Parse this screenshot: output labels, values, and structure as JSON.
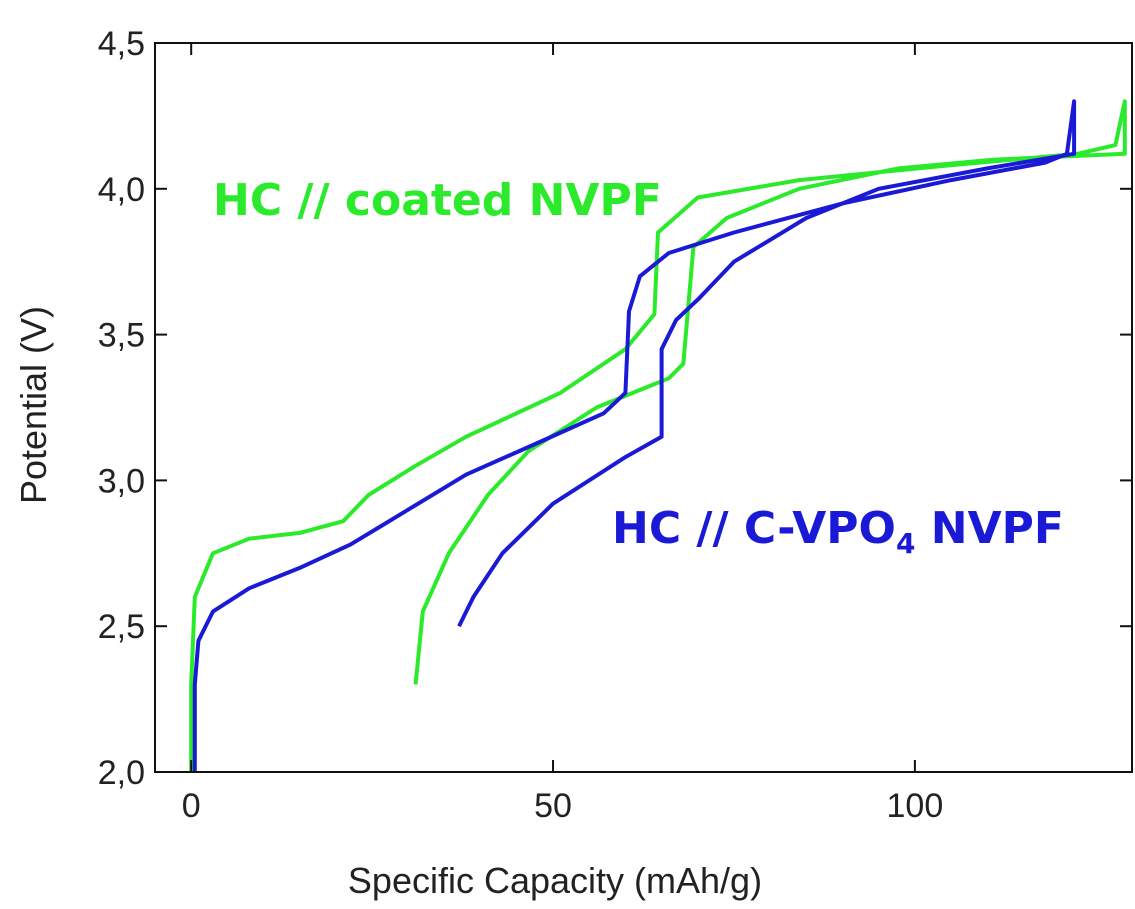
{
  "chart_data": {
    "type": "line",
    "xlabel": "Specific Capacity (mAh/g)",
    "ylabel": "Potential (V)",
    "xlim": [
      -5,
      130
    ],
    "ylim": [
      2,
      4.5
    ],
    "xticks": [
      0,
      50,
      100
    ],
    "yticks": [
      {
        "value": 2.0,
        "label": "2,0"
      },
      {
        "value": 2.5,
        "label": "2,5"
      },
      {
        "value": 3.0,
        "label": "3,0"
      },
      {
        "value": 3.5,
        "label": "3,5"
      },
      {
        "value": 4.0,
        "label": "4,0"
      },
      {
        "value": 4.5,
        "label": "4,5"
      }
    ],
    "annotations": [
      {
        "text_parts": [
          "HC // coated NVPF"
        ],
        "color": "#2bea2b"
      },
      {
        "text_parts": [
          "HC // C-VPO",
          "4",
          " NVPF"
        ],
        "color": "#1a1ad6"
      }
    ],
    "series": [
      {
        "color": "#2bea2b",
        "x": [
          0,
          0,
          0.5,
          3,
          8,
          15,
          21,
          24.5,
          31,
          38,
          51,
          60,
          64,
          64.5,
          70,
          84,
          104.5,
          122.5,
          127.7,
          129,
          129,
          111,
          97.7,
          84,
          74,
          69.4,
          68,
          66,
          56,
          46.6,
          41,
          35.6,
          32,
          31.2,
          31
        ],
        "values": [
          2.0,
          2.3,
          2.6,
          2.75,
          2.8,
          2.82,
          2.86,
          2.95,
          3.05,
          3.15,
          3.3,
          3.45,
          3.57,
          3.85,
          3.97,
          4.03,
          4.08,
          4.12,
          4.15,
          4.3,
          4.12,
          4.1,
          4.07,
          4.0,
          3.9,
          3.8,
          3.4,
          3.35,
          3.25,
          3.1,
          2.95,
          2.75,
          2.55,
          2.35,
          2.3
        ]
      },
      {
        "color": "#1a1ad6",
        "x": [
          0.5,
          0.5,
          1,
          3,
          8,
          15,
          22,
          30,
          38,
          48,
          57,
          60,
          60.5,
          62,
          66,
          75,
          90,
          105,
          118,
          121,
          122,
          122,
          110,
          95,
          85,
          75,
          70,
          67,
          65,
          65,
          60,
          50,
          43,
          39,
          37
        ],
        "values": [
          2.0,
          2.3,
          2.45,
          2.55,
          2.63,
          2.7,
          2.78,
          2.9,
          3.02,
          3.13,
          3.23,
          3.3,
          3.58,
          3.7,
          3.78,
          3.85,
          3.95,
          4.03,
          4.09,
          4.12,
          4.3,
          4.12,
          4.07,
          4.0,
          3.9,
          3.75,
          3.62,
          3.55,
          3.45,
          3.15,
          3.08,
          2.92,
          2.75,
          2.6,
          2.5
        ]
      }
    ]
  }
}
